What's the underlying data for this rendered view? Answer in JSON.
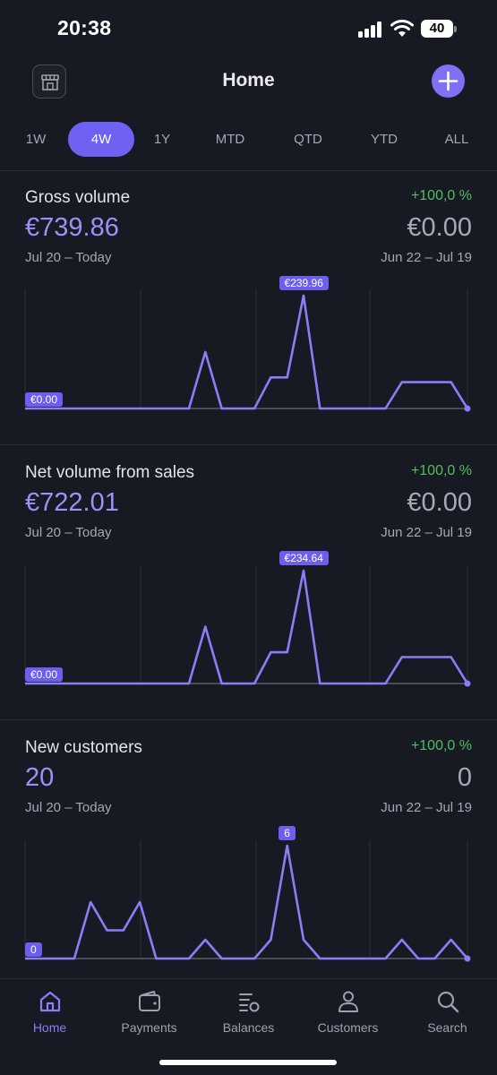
{
  "status_bar": {
    "time": "20:38",
    "battery": "40"
  },
  "header": {
    "title": "Home",
    "store_icon": "store-icon",
    "add_icon": "plus-icon"
  },
  "tabs": [
    {
      "label": "1W",
      "active": false
    },
    {
      "label": "4W",
      "active": true
    },
    {
      "label": "1Y",
      "active": false
    },
    {
      "label": "MTD",
      "active": false
    },
    {
      "label": "QTD",
      "active": false
    },
    {
      "label": "YTD",
      "active": false
    },
    {
      "label": "ALL",
      "active": false
    }
  ],
  "cards": [
    {
      "title": "Gross volume",
      "change": "+100,0 %",
      "value": "€739.86",
      "prev_value": "€0.00",
      "period": "Jul 20 – Today",
      "prev_period": "Jun 22 – Jul 19",
      "min_label": "€0.00",
      "max_label": "€239.96"
    },
    {
      "title": "Net volume from sales",
      "change": "+100,0 %",
      "value": "€722.01",
      "prev_value": "€0.00",
      "period": "Jul 20 – Today",
      "prev_period": "Jun 22 – Jul 19",
      "min_label": "€0.00",
      "max_label": "€234.64"
    },
    {
      "title": "New customers",
      "change": "+100,0 %",
      "value": "20",
      "prev_value": "0",
      "period": "Jul 20 – Today",
      "prev_period": "Jun 22 – Jul 19",
      "min_label": "0",
      "max_label": "6"
    }
  ],
  "chart_data": [
    {
      "type": "line",
      "title": "Gross volume",
      "x": [
        0,
        1,
        2,
        3,
        4,
        5,
        6,
        7,
        8,
        9,
        10,
        11,
        12,
        13,
        14,
        15,
        16,
        17,
        18,
        19,
        20,
        21,
        22,
        23,
        24,
        25,
        26,
        27
      ],
      "series": [
        {
          "values": [
            0,
            0,
            0,
            0,
            0,
            0,
            0,
            0,
            0,
            0,
            0,
            120,
            0,
            0,
            0,
            66,
            66,
            239.96,
            0,
            0,
            0,
            0,
            0,
            56,
            56,
            56,
            56,
            0
          ]
        }
      ],
      "ylim": [
        0,
        239.96
      ],
      "ylabel_min": "€0.00",
      "ylabel_max": "€239.96",
      "color": "#8a7ef6"
    },
    {
      "type": "line",
      "title": "Net volume from sales",
      "x": [
        0,
        1,
        2,
        3,
        4,
        5,
        6,
        7,
        8,
        9,
        10,
        11,
        12,
        13,
        14,
        15,
        16,
        17,
        18,
        19,
        20,
        21,
        22,
        23,
        24,
        25,
        26,
        27
      ],
      "series": [
        {
          "values": [
            0,
            0,
            0,
            0,
            0,
            0,
            0,
            0,
            0,
            0,
            0,
            118,
            0,
            0,
            0,
            65,
            65,
            234.64,
            0,
            0,
            0,
            0,
            0,
            55,
            55,
            55,
            55,
            0
          ]
        }
      ],
      "ylim": [
        0,
        234.64
      ],
      "ylabel_min": "€0.00",
      "ylabel_max": "€234.64",
      "color": "#8a7ef6"
    },
    {
      "type": "line",
      "title": "New customers",
      "x": [
        0,
        1,
        2,
        3,
        4,
        5,
        6,
        7,
        8,
        9,
        10,
        11,
        12,
        13,
        14,
        15,
        16,
        17,
        18,
        19,
        20,
        21,
        22,
        23,
        24,
        25,
        26,
        27
      ],
      "series": [
        {
          "values": [
            0,
            0,
            0,
            0,
            3,
            1.5,
            1.5,
            3,
            0,
            0,
            0,
            1,
            0,
            0,
            0,
            1,
            6,
            1,
            0,
            0,
            0,
            0,
            0,
            1,
            0,
            0,
            1,
            0
          ]
        }
      ],
      "ylim": [
        0,
        6
      ],
      "ylabel_min": "0",
      "ylabel_max": "6",
      "color": "#8a7ef6"
    }
  ],
  "nav": [
    {
      "label": "Home",
      "icon": "home-icon",
      "active": true
    },
    {
      "label": "Payments",
      "icon": "wallet-icon",
      "active": false
    },
    {
      "label": "Balances",
      "icon": "balances-icon",
      "active": false
    },
    {
      "label": "Customers",
      "icon": "person-icon",
      "active": false
    },
    {
      "label": "Search",
      "icon": "search-icon",
      "active": false
    }
  ],
  "colors": {
    "accent": "#7f71f3",
    "positive": "#4fbf5b",
    "background": "#181a23"
  }
}
